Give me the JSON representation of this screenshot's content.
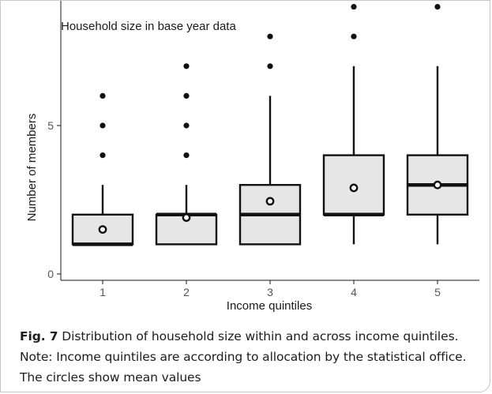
{
  "chart_data": {
    "type": "box",
    "title": "Household size in base year data",
    "xlabel": "Income quintiles",
    "ylabel": "Number of members",
    "ylim": [
      0,
      15.5
    ],
    "yticks": [
      0,
      5,
      10,
      15
    ],
    "grid": false,
    "categories": [
      "1",
      "2",
      "3",
      "4",
      "5"
    ],
    "boxes": [
      {
        "category": "1",
        "whisker_low": 1,
        "q1": 1,
        "median": 1,
        "q3": 2,
        "whisker_high": 3,
        "mean": 1.5,
        "outliers": [
          4,
          5,
          6
        ]
      },
      {
        "category": "2",
        "whisker_low": 1,
        "q1": 1,
        "median": 2,
        "q3": 2,
        "whisker_high": 3,
        "mean": 1.9,
        "outliers": [
          4,
          5,
          6,
          7
        ]
      },
      {
        "category": "3",
        "whisker_low": 1,
        "q1": 1,
        "median": 2,
        "q3": 3,
        "whisker_high": 6,
        "mean": 2.45,
        "outliers": [
          7,
          8
        ]
      },
      {
        "category": "4",
        "whisker_low": 1,
        "q1": 2,
        "median": 2,
        "q3": 4,
        "whisker_high": 7,
        "mean": 2.9,
        "outliers": [
          8,
          9
        ]
      },
      {
        "category": "5",
        "whisker_low": 1,
        "q1": 2,
        "median": 3,
        "q3": 4,
        "whisker_high": 7,
        "mean": 3.0,
        "outliers": [
          9
        ]
      }
    ]
  },
  "caption": {
    "label": "Fig. 7",
    "text": "Distribution of household size within and across income quintiles. Note: Income quintiles are according to allocation by the statistical office. The circles show mean values"
  }
}
